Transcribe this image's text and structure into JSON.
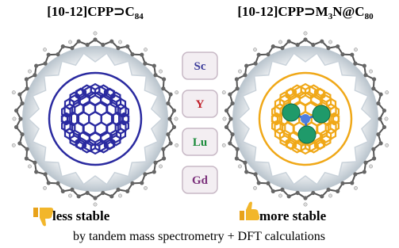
{
  "left_title": {
    "main": "[10-12]CPP⊃C",
    "sub": "84"
  },
  "right_title": {
    "main1": "[10-12]CPP⊃M",
    "sub1": "3",
    "main2": "N@C",
    "sub2": "80"
  },
  "metals": [
    "Sc",
    "Y",
    "Lu",
    "Gd"
  ],
  "left_caption": "less stable",
  "right_caption": "more stable",
  "footer": "by tandem mass spectrometry  +  DFT calculations"
}
